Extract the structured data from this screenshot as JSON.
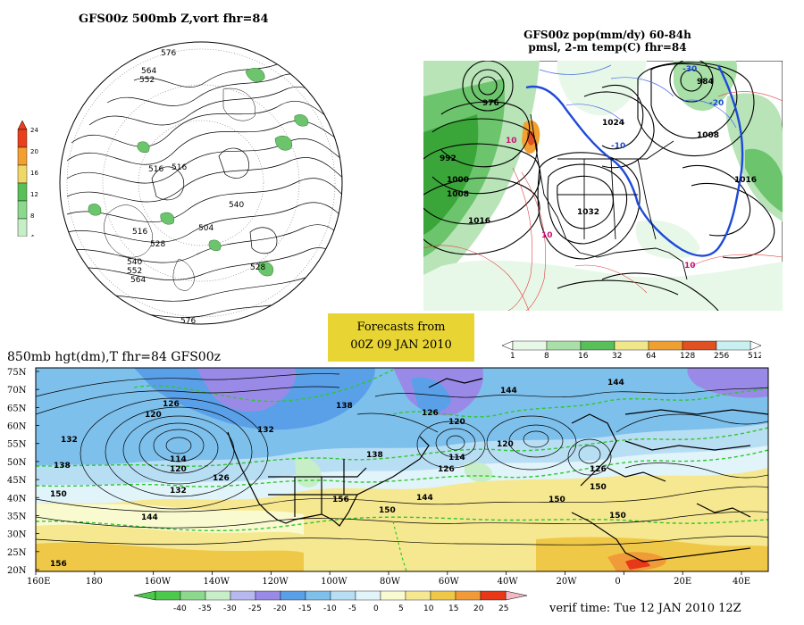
{
  "polar_panel": {
    "title": "GFS00z   500mb  Z,vort     fhr=84",
    "colorbar_ticks": [
      "24",
      "20",
      "16",
      "12",
      "8",
      "4"
    ],
    "colorbar_colors": [
      "#e8401c",
      "#f2a030",
      "#f0d868",
      "#58c058",
      "#8cd88c",
      "#c8eec8"
    ],
    "contour_labels": [
      "576",
      "564",
      "552",
      "516",
      "516",
      "528",
      "540",
      "552",
      "564",
      "576",
      "504",
      "528",
      "540",
      "516"
    ]
  },
  "conus_panel": {
    "title_line1": "GFS00z pop(mm/dy) 60-84h",
    "title_line2": "pmsl, 2-m temp(C)  fhr=84",
    "pressure_labels": [
      "976",
      "984",
      "992",
      "1000",
      "1008",
      "1016",
      "1024",
      "1032",
      "1008",
      "1016"
    ],
    "temp_labels": [
      "-30",
      "-20",
      "-10",
      "10",
      "10",
      "10"
    ],
    "colorbar_ticks": [
      "1",
      "8",
      "16",
      "32",
      "64",
      "128",
      "256",
      "512"
    ],
    "colorbar_colors": [
      "#e8f8e8",
      "#a8e0a8",
      "#58c058",
      "#f0e888",
      "#f0a030",
      "#e05020",
      "#c8f0f0"
    ]
  },
  "forecast_stamp": {
    "line1": "Forecasts from",
    "line2": "00Z 09 JAN 2010"
  },
  "main_panel": {
    "title": "850mb hgt(dm),T   fhr=84 GFS00z",
    "lat_labels": [
      "75N",
      "70N",
      "65N",
      "60N",
      "55N",
      "50N",
      "45N",
      "40N",
      "35N",
      "30N",
      "25N",
      "20N"
    ],
    "lon_labels": [
      "160E",
      "180",
      "160W",
      "140W",
      "120W",
      "100W",
      "80W",
      "60W",
      "40W",
      "20W",
      "0",
      "20E",
      "40E"
    ],
    "height_labels": [
      "132",
      "126",
      "120",
      "114",
      "120",
      "126",
      "132",
      "138",
      "144",
      "150",
      "156",
      "138",
      "126",
      "120",
      "114",
      "126",
      "144",
      "150",
      "120",
      "144",
      "150",
      "138",
      "132",
      "126",
      "150",
      "144",
      "156",
      "150"
    ],
    "colorbar_ticks": [
      "-40",
      "-35",
      "-30",
      "-25",
      "-20",
      "-15",
      "-10",
      "-5",
      "0",
      "5",
      "10",
      "15",
      "20",
      "25"
    ],
    "colorbar_colors": [
      "#4cc84c",
      "#8cd88c",
      "#c8eec8",
      "#b8b8f0",
      "#9a8ae8",
      "#5aa0e8",
      "#7ec0ec",
      "#b8def4",
      "#e0f4fa",
      "#fafad0",
      "#f6e890",
      "#f0c848",
      "#f09a38",
      "#e83818"
    ]
  },
  "verif": "verif time: Tue 12 JAN 2010 12Z"
}
